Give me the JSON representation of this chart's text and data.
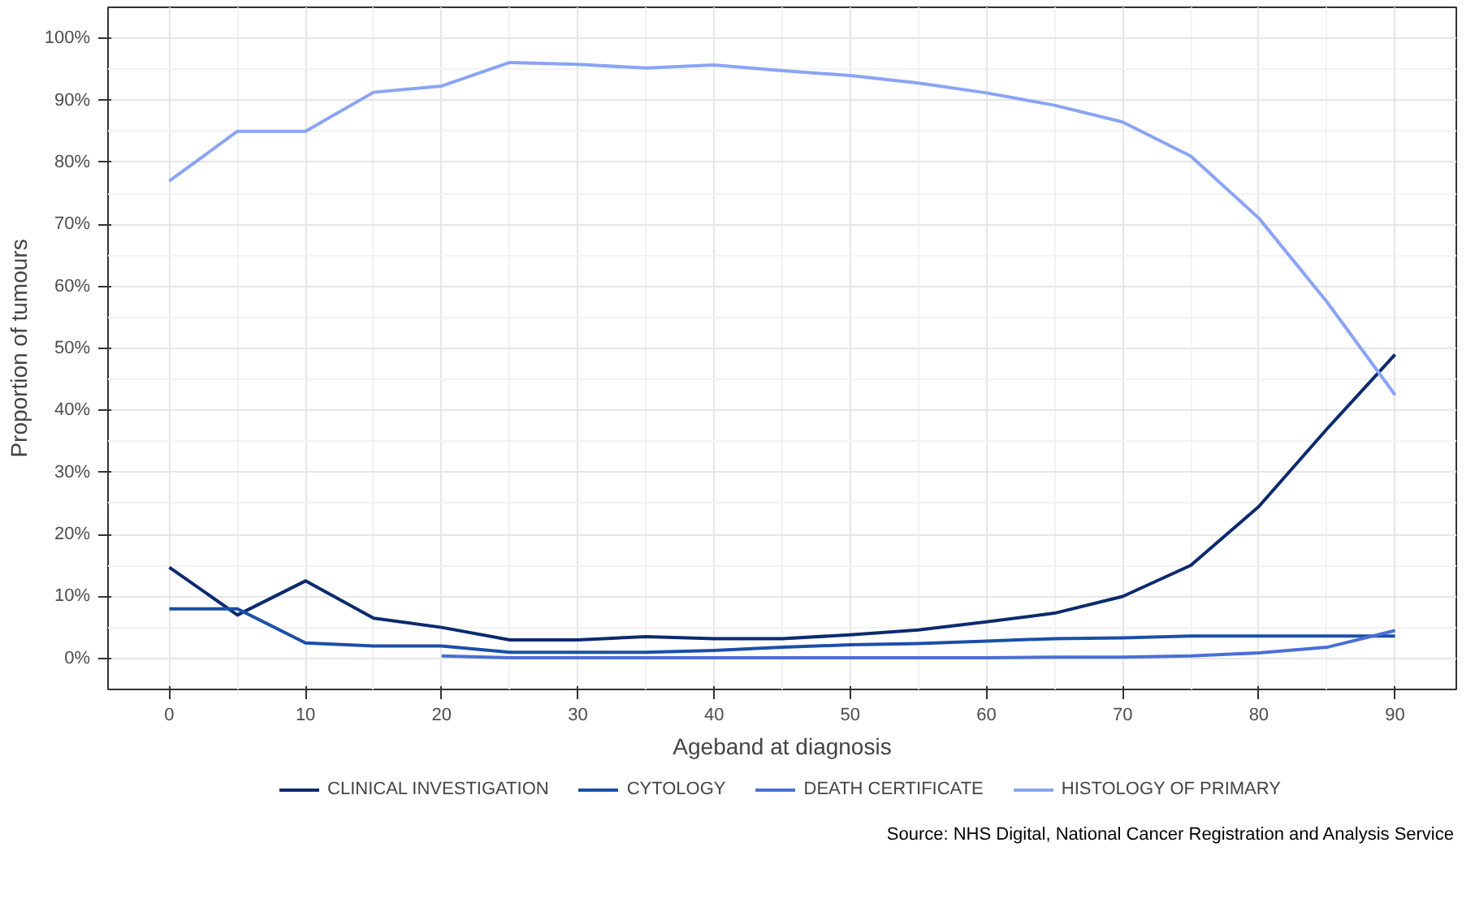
{
  "chart_data": {
    "type": "line",
    "xlabel": "Ageband at diagnosis",
    "ylabel": "Proportion of tumours",
    "x": [
      0,
      5,
      10,
      15,
      20,
      25,
      30,
      35,
      40,
      45,
      50,
      55,
      60,
      65,
      70,
      75,
      80,
      85,
      90
    ],
    "series": [
      {
        "name": "CLINICAL INVESTIGATION",
        "color": "#0b2a6e",
        "values": [
          14.7,
          7,
          12.5,
          6.5,
          5,
          3,
          3,
          3.5,
          3.2,
          3.2,
          3.8,
          4.6,
          5.9,
          7.3,
          10,
          15,
          24.5,
          37,
          49
        ]
      },
      {
        "name": "CYTOLOGY",
        "color": "#1b4fa8",
        "values": [
          8,
          8,
          2.5,
          2,
          2,
          1,
          1,
          1,
          1.3,
          1.8,
          2.2,
          2.4,
          2.8,
          3.2,
          3.3,
          3.6,
          3.6,
          3.6,
          3.6
        ]
      },
      {
        "name": "DEATH CERTIFICATE",
        "color": "#4a6fd6",
        "values": [
          null,
          null,
          null,
          null,
          0.4,
          0.1,
          0.1,
          0.1,
          0.1,
          0.1,
          0.1,
          0.1,
          0.1,
          0.2,
          0.2,
          0.4,
          0.9,
          1.8,
          4.5
        ]
      },
      {
        "name": "HISTOLOGY OF PRIMARY",
        "color": "#8aa4f5",
        "values": [
          77,
          85,
          85,
          91.3,
          92.3,
          96.1,
          95.8,
          95.2,
          95.7,
          94.8,
          94,
          92.8,
          91.2,
          89.2,
          86.5,
          81,
          71,
          57.5,
          42.5
        ]
      }
    ],
    "xlim": [
      -4.5,
      94.5
    ],
    "ylim": [
      -5,
      105
    ],
    "xticks": [
      0,
      10,
      20,
      30,
      40,
      50,
      60,
      70,
      80,
      90
    ],
    "yticks": [
      {
        "value": 0,
        "label": "0%"
      },
      {
        "value": 10,
        "label": "10%"
      },
      {
        "value": 20,
        "label": "20%"
      },
      {
        "value": 30,
        "label": "30%"
      },
      {
        "value": 40,
        "label": "40%"
      },
      {
        "value": 50,
        "label": "50%"
      },
      {
        "value": 60,
        "label": "60%"
      },
      {
        "value": 70,
        "label": "70%"
      },
      {
        "value": 80,
        "label": "80%"
      },
      {
        "value": 90,
        "label": "90%"
      },
      {
        "value": 100,
        "label": "100%"
      }
    ],
    "grid": true,
    "legend": "bottom",
    "line_style": "solid",
    "marker": "none",
    "annotations": [
      "Source: NHS Digital, National Cancer Registration and Analysis Service"
    ]
  }
}
